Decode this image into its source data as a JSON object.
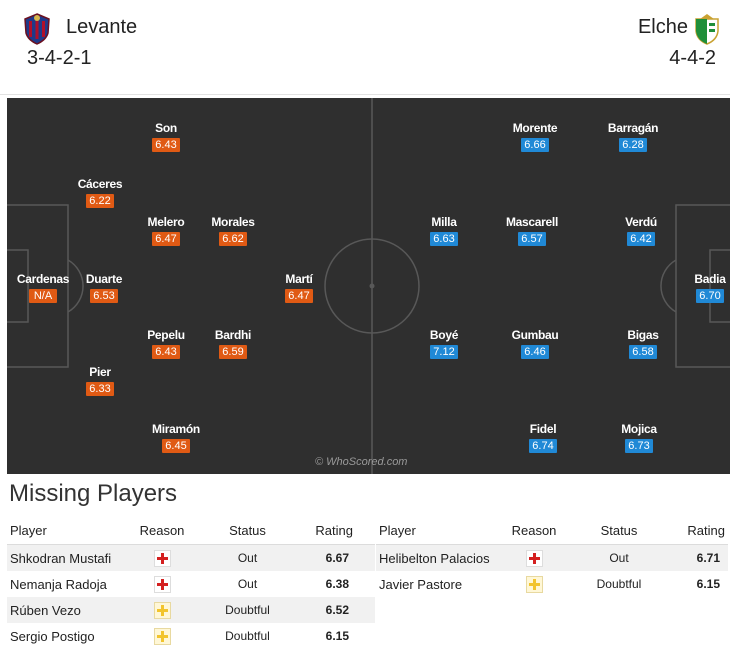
{
  "home": {
    "name": "Levante",
    "formation": "3-4-2-1",
    "players": [
      {
        "name": "Son",
        "rating": "6.43"
      },
      {
        "name": "Cáceres",
        "rating": "6.22"
      },
      {
        "name": "Melero",
        "rating": "6.47"
      },
      {
        "name": "Morales",
        "rating": "6.62"
      },
      {
        "name": "Cardenas",
        "rating": "N/A"
      },
      {
        "name": "Duarte",
        "rating": "6.53"
      },
      {
        "name": "Martí",
        "rating": "6.47"
      },
      {
        "name": "Pepelu",
        "rating": "6.43"
      },
      {
        "name": "Bardhi",
        "rating": "6.59"
      },
      {
        "name": "Pier",
        "rating": "6.33"
      },
      {
        "name": "Miramón",
        "rating": "6.45"
      }
    ]
  },
  "away": {
    "name": "Elche",
    "formation": "4-4-2",
    "players": [
      {
        "name": "Morente",
        "rating": "6.66"
      },
      {
        "name": "Barragán",
        "rating": "6.28"
      },
      {
        "name": "Milla",
        "rating": "6.63"
      },
      {
        "name": "Mascarell",
        "rating": "6.57"
      },
      {
        "name": "Verdú",
        "rating": "6.42"
      },
      {
        "name": "Badia",
        "rating": "6.70"
      },
      {
        "name": "Boyé",
        "rating": "7.12"
      },
      {
        "name": "Gumbau",
        "rating": "6.46"
      },
      {
        "name": "Bigas",
        "rating": "6.58"
      },
      {
        "name": "Fidel",
        "rating": "6.74"
      },
      {
        "name": "Mojica",
        "rating": "6.73"
      }
    ]
  },
  "watermark": "© WhoScored.com",
  "missing": {
    "title": "Missing Players",
    "headers": {
      "player": "Player",
      "reason": "Reason",
      "status": "Status",
      "rating": "Rating"
    },
    "home": [
      {
        "player": "Shkodran Mustafi",
        "reason": "injury",
        "status": "Out",
        "rating": "6.67"
      },
      {
        "player": "Nemanja Radoja",
        "reason": "injury",
        "status": "Out",
        "rating": "6.38"
      },
      {
        "player": "Rúben Vezo",
        "reason": "doubt",
        "status": "Doubtful",
        "rating": "6.52"
      },
      {
        "player": "Sergio Postigo",
        "reason": "doubt",
        "status": "Doubtful",
        "rating": "6.15"
      }
    ],
    "away": [
      {
        "player": "Helibelton Palacios",
        "reason": "injury",
        "status": "Out",
        "rating": "6.71"
      },
      {
        "player": "Javier Pastore",
        "reason": "doubt",
        "status": "Doubtful",
        "rating": "6.15"
      }
    ]
  },
  "colors": {
    "pitch": "#2f2f2f",
    "home_badge": "#e05a14",
    "away_badge": "#2089d6",
    "injury": "#d42020",
    "doubt": "#f2c42d"
  }
}
